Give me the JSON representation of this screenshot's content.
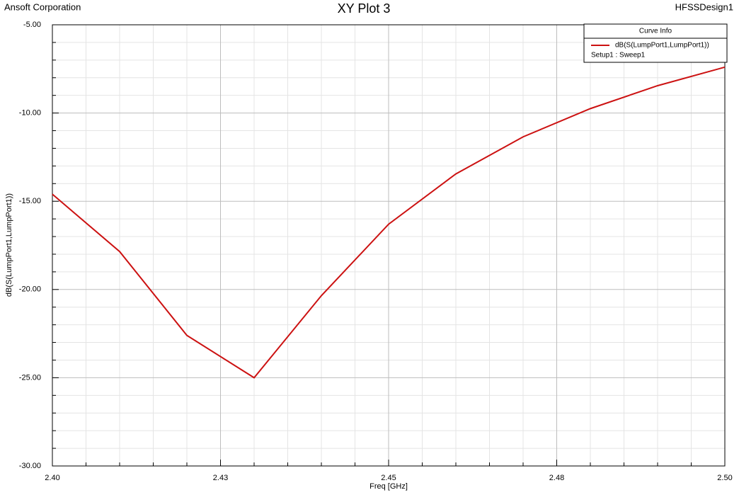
{
  "chart_data": {
    "type": "line",
    "title": "XY Plot 3",
    "company": "Ansoft Corporation",
    "design": "HFSSDesign1",
    "x_label": "Freq [GHz]",
    "y_label": "dB(S(LumpPort1,LumpPort1))",
    "x": [
      2.4,
      2.41,
      2.42,
      2.43,
      2.44,
      2.45,
      2.46,
      2.47,
      2.48,
      2.49,
      2.5
    ],
    "series": [
      {
        "name": "dB(S(LumpPort1,LumpPort1))",
        "setup": "Setup1 : Sweep1",
        "color": "#cc1111",
        "values": [
          -14.6,
          -17.85,
          -22.6,
          -25.0,
          -20.35,
          -16.3,
          -13.45,
          -11.35,
          -9.75,
          -8.45,
          -7.4
        ]
      }
    ],
    "legend_title": "Curve Info",
    "legend": "top-right",
    "xlim": [
      2.4,
      2.5
    ],
    "xticks": [
      {
        "value": 2.4,
        "label": "2.40"
      },
      {
        "value": 2.425,
        "label": "2.43"
      },
      {
        "value": 2.45,
        "label": "2.45"
      },
      {
        "value": 2.475,
        "label": "2.48"
      },
      {
        "value": 2.5,
        "label": "2.50"
      }
    ],
    "ylim": [
      -30,
      -5
    ],
    "yticks": [
      {
        "value": -30,
        "label": "-30.00"
      },
      {
        "value": -25,
        "label": "-25.00"
      },
      {
        "value": -20,
        "label": "-20.00"
      },
      {
        "value": -15,
        "label": "-15.00"
      },
      {
        "value": -10,
        "label": "-10.00"
      },
      {
        "value": -5,
        "label": "-5.00"
      }
    ],
    "grid": true
  }
}
